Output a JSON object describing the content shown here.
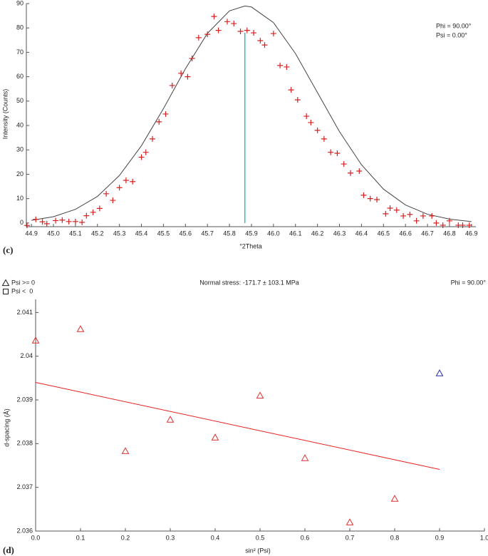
{
  "chart_data": [
    {
      "type": "scatter",
      "panel_label": "(c)",
      "xlabel": "°2Theta",
      "ylabel": "Intensity (Counts)",
      "annotations": [
        "Phi = 90.00°",
        "Psi = 0.00°"
      ],
      "marker": "plus",
      "color": "#d62020",
      "x": [
        44.88,
        44.92,
        44.95,
        44.97,
        45.01,
        45.04,
        45.07,
        45.1,
        45.13,
        45.15,
        45.18,
        45.21,
        45.24,
        45.27,
        45.3,
        45.33,
        45.36,
        45.4,
        45.42,
        45.45,
        45.48,
        45.51,
        45.54,
        45.58,
        45.61,
        45.63,
        45.66,
        45.7,
        45.73,
        45.75,
        45.79,
        45.82,
        45.85,
        45.88,
        45.91,
        45.94,
        45.96,
        46.0,
        46.03,
        46.06,
        46.08,
        46.11,
        46.15,
        46.17,
        46.2,
        46.23,
        46.26,
        46.29,
        46.32,
        46.35,
        46.39,
        46.41,
        46.44,
        46.47,
        46.51,
        46.53,
        46.56,
        46.59,
        46.62,
        46.65,
        46.68,
        46.72,
        46.74,
        46.77,
        46.8,
        46.84,
        46.86,
        46.89
      ],
      "values": [
        -1,
        1.5,
        0.5,
        -0.3,
        1,
        1.2,
        0.6,
        0.6,
        0.3,
        3,
        4.4,
        6,
        12,
        9.3,
        14.5,
        17.5,
        17,
        27,
        29,
        34.5,
        41.5,
        44.7,
        56.4,
        61.4,
        60,
        67.5,
        76,
        77.4,
        84.7,
        79,
        82.6,
        81.8,
        78.6,
        79,
        78,
        74.8,
        73,
        77.7,
        64.6,
        64,
        54.6,
        50.5,
        43.8,
        41.2,
        38,
        34.5,
        29,
        28.6,
        24.2,
        20.5,
        21.3,
        11.4,
        10,
        9.6,
        3.8,
        6.1,
        5.3,
        2.9,
        3.5,
        0.9,
        2.9,
        2.9,
        0,
        -0.9,
        0.9,
        -0.9,
        -0.9,
        -0.9
      ],
      "fit": {
        "color": "#444444",
        "x": [
          44.9,
          45.0,
          45.1,
          45.2,
          45.3,
          45.4,
          45.5,
          45.6,
          45.7,
          45.8,
          45.87,
          45.9,
          46.0,
          46.1,
          46.2,
          46.3,
          46.4,
          46.5,
          46.6,
          46.7,
          46.8,
          46.9
        ],
        "values": [
          1.1,
          2.6,
          5.6,
          10.9,
          19.5,
          31.7,
          46.9,
          63.3,
          77.8,
          87.0,
          89,
          88.6,
          82.2,
          69.5,
          53.5,
          37.5,
          23.9,
          13.9,
          7.4,
          3.6,
          1.6,
          0.6
        ]
      },
      "peak_line": {
        "x": 45.87,
        "y": 78,
        "color": "#33bbbb"
      },
      "xlim": [
        44.877,
        46.92
      ],
      "ylim": [
        -1.5,
        90
      ],
      "xticks": [
        44.9,
        {
          "value": 45.0,
          "label": "45.0"
        },
        45.1,
        45.2,
        45.3,
        45.4,
        45.5,
        45.6,
        45.7,
        45.8,
        45.9,
        {
          "value": 46.0,
          "label": "46.0"
        },
        46.1,
        46.2,
        46.3,
        46.4,
        46.5,
        46.6,
        46.7,
        46.8,
        46.9
      ],
      "yticks": [
        0,
        10,
        20,
        30,
        40,
        50,
        60,
        70,
        80,
        90
      ]
    },
    {
      "type": "scatter",
      "panel_label": "(d)",
      "xlabel": "sin² (Psi)",
      "ylabel": "d-spacing (Å)",
      "annotations": [
        "Normal stress: -171.7 ± 103.1 MPa",
        "Phi = 90.00°"
      ],
      "series": [
        {
          "name": "Psi >= 0",
          "marker": "triangle",
          "x": [
            0.0,
            0.1,
            0.2,
            0.3,
            0.4,
            0.5,
            0.6,
            0.7,
            0.8,
            0.9
          ],
          "values": [
            2.04036,
            2.04062,
            2.03783,
            2.03855,
            2.03814,
            2.0391,
            2.03767,
            2.0362,
            2.03674,
            2.03961
          ],
          "colors": [
            "#e03030",
            "#e03030",
            "#e03030",
            "#e03030",
            "#e03030",
            "#e03030",
            "#e03030",
            "#e03030",
            "#e03030",
            "#2a2aa0"
          ]
        },
        {
          "name": "Psi <  0",
          "marker": "square",
          "x": [],
          "values": [],
          "colors": []
        }
      ],
      "fit": {
        "color": "#e82020",
        "x": [
          0.0,
          0.9
        ],
        "values": [
          2.0394,
          2.03741
        ]
      },
      "xlim": [
        0,
        1
      ],
      "ylim": [
        2.036,
        2.0413
      ],
      "xticks": [
        {
          "value": 0,
          "label": "0.0"
        },
        0.1,
        0.2,
        0.3,
        0.4,
        0.5,
        0.6,
        0.7,
        0.8,
        0.9,
        {
          "value": 1,
          "label": "1.0"
        }
      ],
      "yticks": [
        2.036,
        2.037,
        2.038,
        2.039,
        2.04,
        2.041
      ]
    }
  ]
}
